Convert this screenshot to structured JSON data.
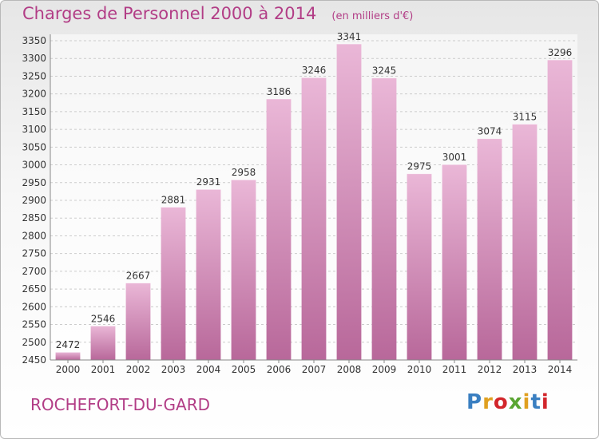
{
  "header": {
    "title": "Charges de Personnel 2000 à 2014",
    "unit": "(en milliers d'€)"
  },
  "footer": {
    "place": "ROCHEFORT-DU-GARD",
    "logo_text": "Proxiti",
    "logo_colors": [
      "#3a7fc1",
      "#e0a020",
      "#d2262b",
      "#5aa532",
      "#e0a020",
      "#3a7fc1",
      "#d2262b"
    ]
  },
  "colors": {
    "bar_light": "#eab7d7",
    "bar_dark": "#b8689a",
    "text": "#b23d86",
    "grid": "#cccccc"
  },
  "chart_data": {
    "type": "bar",
    "title": "Charges de Personnel 2000 à 2014",
    "subtitle": "(en milliers d'€)",
    "categories": [
      "2000",
      "2001",
      "2002",
      "2003",
      "2004",
      "2005",
      "2006",
      "2007",
      "2008",
      "2009",
      "2010",
      "2011",
      "2012",
      "2013",
      "2014"
    ],
    "values": [
      2472,
      2546,
      2667,
      2881,
      2931,
      2958,
      3186,
      3246,
      3341,
      3245,
      2975,
      3001,
      3074,
      3115,
      3296
    ],
    "ylim": [
      2450,
      3350
    ],
    "yticks": [
      2450,
      2500,
      2550,
      2600,
      2650,
      2700,
      2750,
      2800,
      2850,
      2900,
      2950,
      3000,
      3050,
      3100,
      3150,
      3200,
      3250,
      3300,
      3350
    ],
    "grid": true,
    "data_labels": true
  }
}
